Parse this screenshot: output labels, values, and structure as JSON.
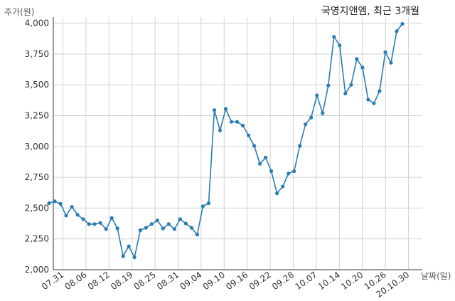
{
  "chart_data": {
    "type": "line",
    "title": "국영지앤엠, 최근 3개월",
    "ylabel": "주가(원)",
    "xlabel": "날짜(일)",
    "ylim": [
      2000,
      4050
    ],
    "y_ticks": [
      "2,000",
      "2,250",
      "2,500",
      "2,750",
      "3,000",
      "3,250",
      "3,500",
      "3,750",
      "4,000"
    ],
    "x_ticks": [
      "07.31",
      "08.06",
      "08.12",
      "08.19",
      "08.25",
      "08.31",
      "09.04",
      "09.10",
      "09.16",
      "09.22",
      "09.28",
      "10.07",
      "10.14",
      "10.20",
      "10.26",
      "20.10.30"
    ],
    "grid": true,
    "line_color": "#2a7db4",
    "series": [
      {
        "values": [
          2540,
          2555,
          2535,
          2440,
          2510,
          2445,
          2410,
          2370,
          2370,
          2380,
          2330,
          2420,
          2335,
          2110,
          2190,
          2100,
          2320,
          2340,
          2370,
          2400,
          2335,
          2370,
          2330,
          2410,
          2375,
          2340,
          2285,
          2515,
          2540,
          3295,
          3130,
          3305,
          3200,
          3200,
          3170,
          3090,
          3005,
          2860,
          2910,
          2800,
          2620,
          2675,
          2780,
          2800,
          3005,
          3180,
          3235,
          3415,
          3270,
          3495,
          3890,
          3820,
          3430,
          3500,
          3710,
          3640,
          3380,
          3350,
          3450,
          3765,
          3680,
          3935,
          3995
        ]
      }
    ]
  }
}
